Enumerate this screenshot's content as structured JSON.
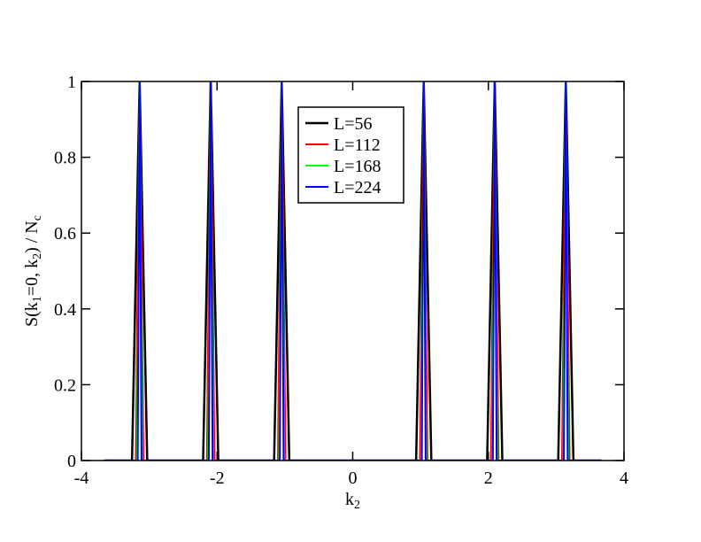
{
  "chart_data": {
    "type": "line",
    "xlabel": [
      {
        "text": "k"
      },
      {
        "text": "2",
        "sub": true
      }
    ],
    "ylabel": [
      {
        "text": "S(k"
      },
      {
        "text": "1",
        "sub": true
      },
      {
        "text": "=0, k"
      },
      {
        "text": "2",
        "sub": true
      },
      {
        "text": ") / N"
      },
      {
        "text": "c",
        "sub": true
      }
    ],
    "xlim": [
      -4,
      4
    ],
    "xticks": [
      -4,
      -2,
      0,
      2,
      4
    ],
    "ylim": [
      0,
      1
    ],
    "yticks": [
      0,
      0.2,
      0.4,
      0.6,
      0.8,
      1
    ],
    "legend": "top-center",
    "series": [
      {
        "name": "L=56",
        "color": "#000000",
        "x": [
          -3.665,
          -3.254,
          -3.142,
          -3.03,
          -2.206,
          -2.094,
          -1.982,
          -1.159,
          -1.047,
          -0.935,
          0.935,
          1.047,
          1.159,
          1.982,
          2.094,
          2.206,
          3.03,
          3.142,
          3.254,
          3.665
        ],
        "values": [
          0,
          0,
          1,
          0,
          0,
          1,
          0,
          0,
          1,
          0,
          0,
          1,
          0,
          0,
          1,
          0,
          0,
          1,
          0,
          0
        ]
      },
      {
        "name": "L=112",
        "color": "#ff0000",
        "x": [
          -3.665,
          -3.198,
          -3.142,
          -3.086,
          -2.15,
          -2.094,
          -2.038,
          -1.103,
          -1.047,
          -0.991,
          0.991,
          1.047,
          1.103,
          2.038,
          2.094,
          2.15,
          3.086,
          3.142,
          3.198,
          3.665
        ],
        "values": [
          0,
          0,
          1,
          0,
          0,
          1,
          0,
          0,
          1,
          0,
          0,
          1,
          0,
          0,
          1,
          0,
          0,
          1,
          0,
          0
        ]
      },
      {
        "name": "L=168",
        "color": "#00ff00",
        "x": [
          -3.665,
          -3.179,
          -3.142,
          -3.105,
          -2.131,
          -2.094,
          -2.057,
          -1.084,
          -1.047,
          -1.01,
          1.01,
          1.047,
          1.084,
          2.057,
          2.094,
          2.131,
          3.105,
          3.142,
          3.179,
          3.665
        ],
        "values": [
          0,
          0,
          1,
          0,
          0,
          1,
          0,
          0,
          1,
          0,
          0,
          1,
          0,
          0,
          1,
          0,
          0,
          1,
          0,
          0
        ]
      },
      {
        "name": "L=224",
        "color": "#0000ff",
        "x": [
          -3.665,
          -3.17,
          -3.142,
          -3.114,
          -2.122,
          -2.094,
          -2.066,
          -1.075,
          -1.047,
          -1.019,
          1.019,
          1.047,
          1.075,
          2.066,
          2.094,
          2.122,
          3.114,
          3.142,
          3.17,
          3.665
        ],
        "values": [
          0,
          0,
          1,
          0,
          0,
          1,
          0,
          0,
          1,
          0,
          0,
          1,
          0,
          0,
          1,
          0,
          0,
          1,
          0,
          0
        ]
      }
    ]
  }
}
